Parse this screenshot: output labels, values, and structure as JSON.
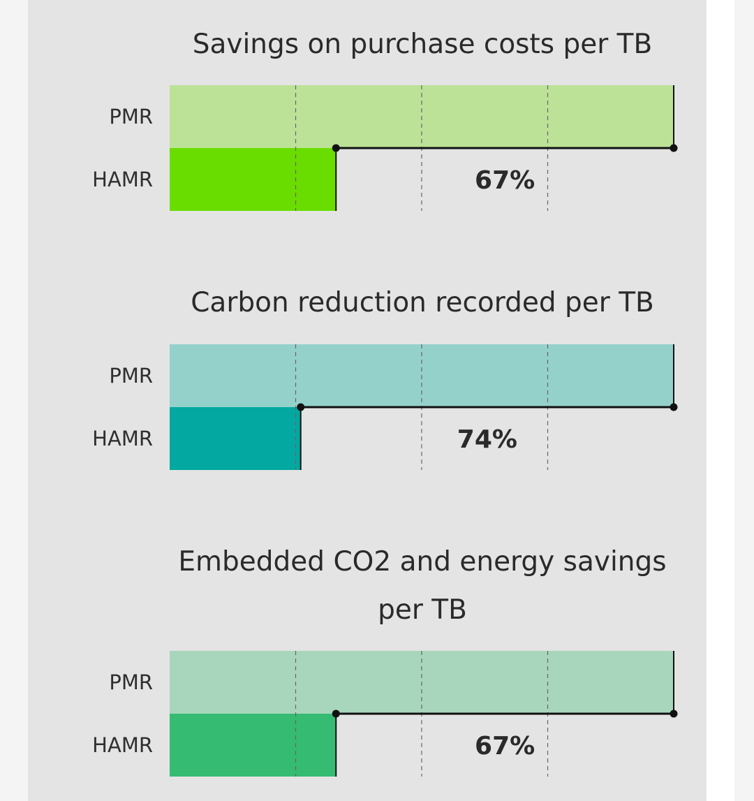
{
  "chart_data": [
    {
      "type": "bar",
      "title": "Savings on purchase costs per TB",
      "categories": [
        "PMR",
        "HAMR"
      ],
      "values": [
        100,
        33
      ],
      "xlim": [
        0,
        100
      ],
      "difference_label": "67%",
      "colors": {
        "PMR": "#bce297",
        "HAMR": "#6add00"
      }
    },
    {
      "type": "bar",
      "title": "Carbon reduction recorded per TB",
      "categories": [
        "PMR",
        "HAMR"
      ],
      "values": [
        100,
        26
      ],
      "xlim": [
        0,
        100
      ],
      "difference_label": "74%",
      "colors": {
        "PMR": "#95d1cb",
        "HAMR": "#03a8a0"
      }
    },
    {
      "type": "bar",
      "title": "Embedded CO2 and energy savings per TB",
      "title_lines": [
        "Embedded CO2 and energy savings",
        "per TB"
      ],
      "categories": [
        "PMR",
        "HAMR"
      ],
      "values": [
        100,
        33
      ],
      "xlim": [
        0,
        100
      ],
      "difference_label": "67%",
      "colors": {
        "PMR": "#a8d6bc",
        "HAMR": "#36bb72"
      }
    }
  ]
}
